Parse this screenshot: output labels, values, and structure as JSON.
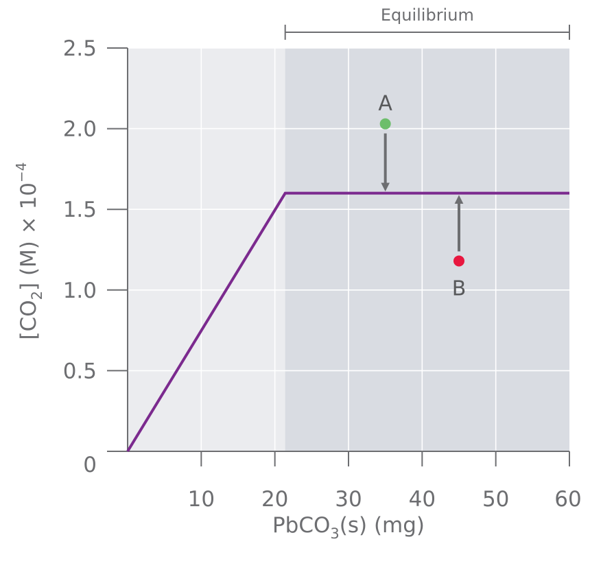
{
  "chart_data": {
    "type": "line",
    "xlabel": {
      "main": "PbCO",
      "sub": "3",
      "tail": "(s) (mg)"
    },
    "ylabel": {
      "pre": "[CO",
      "sub": "2",
      "mid": "] (M) × 10",
      "sup": "−4"
    },
    "xlim": [
      0,
      60
    ],
    "ylim": [
      0,
      2.5
    ],
    "xticks": [
      10,
      20,
      30,
      40,
      50,
      60
    ],
    "xtick_labels": [
      "10",
      "20",
      "30",
      "40",
      "50",
      "60"
    ],
    "yticks": [
      0,
      0.5,
      1.0,
      1.5,
      2.0,
      2.5
    ],
    "ytick_labels": [
      "0",
      "0.5",
      "1.0",
      "1.5",
      "2.0",
      "2.5"
    ],
    "grid": true,
    "series": [
      {
        "x": [
          0,
          21.4,
          60
        ],
        "y": [
          0,
          1.6,
          1.6
        ],
        "color": "#7b2a8e"
      }
    ],
    "regions": [
      {
        "label": "Equilibrium",
        "x": [
          21.4,
          60
        ],
        "color": "#d9dce2"
      }
    ],
    "background_color": "#ebecef",
    "points": [
      {
        "label": "A",
        "x": 35,
        "y": 2.03,
        "color": "#6dbe6b",
        "arrow_to": 1.6
      },
      {
        "label": "B",
        "x": 45,
        "y": 1.18,
        "color": "#e8173f",
        "arrow_to": 1.6
      }
    ]
  }
}
